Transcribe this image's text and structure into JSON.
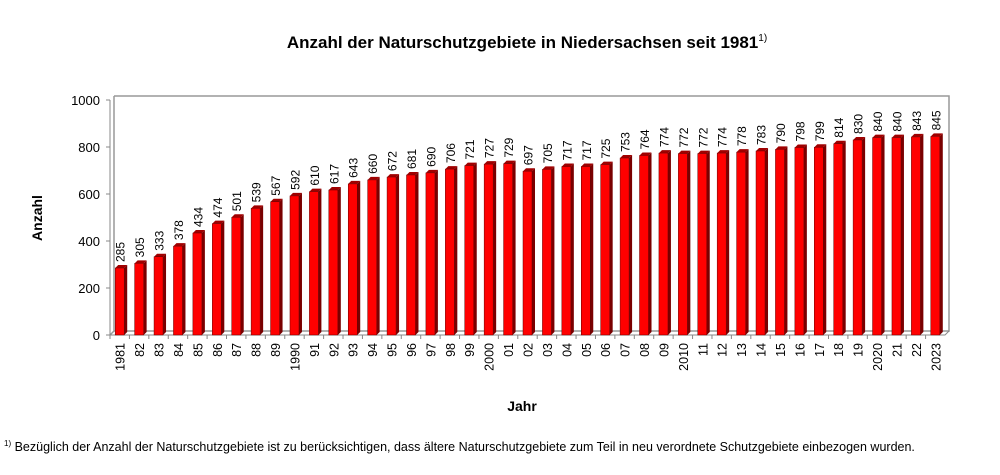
{
  "chart_data": {
    "type": "bar",
    "title": "Anzahl der Naturschutzgebiete in Niedersachsen seit 1981",
    "title_footnote_mark": "1)",
    "xlabel": "Jahr",
    "ylabel": "Anzahl",
    "ylim": [
      0,
      1000
    ],
    "yticks": [
      0,
      200,
      400,
      600,
      800,
      1000
    ],
    "grid": false,
    "categories": [
      "1981",
      "82",
      "83",
      "84",
      "85",
      "86",
      "87",
      "88",
      "89",
      "1990",
      "91",
      "92",
      "93",
      "94",
      "95",
      "96",
      "97",
      "98",
      "99",
      "2000",
      "01",
      "02",
      "03",
      "04",
      "05",
      "06",
      "07",
      "08",
      "09",
      "2010",
      "11",
      "12",
      "13",
      "14",
      "15",
      "16",
      "17",
      "18",
      "19",
      "2020",
      "21",
      "22",
      "2023"
    ],
    "values": [
      285,
      305,
      333,
      378,
      434,
      474,
      501,
      539,
      567,
      592,
      610,
      617,
      643,
      660,
      672,
      681,
      690,
      706,
      721,
      727,
      729,
      697,
      705,
      717,
      717,
      725,
      753,
      764,
      774,
      772,
      772,
      774,
      778,
      783,
      790,
      798,
      799,
      814,
      830,
      840,
      840,
      843,
      845
    ],
    "bar_color": "#ff0000",
    "bar_shade_color": "#7a0000"
  },
  "footnote": {
    "mark": "1)",
    "text": " Bezüglich der Anzahl der Naturschutzgebiete ist zu berücksichtigen, dass ältere Naturschutzgebiete zum Teil in neu verordnete Schutzgebiete einbezogen wurden."
  }
}
